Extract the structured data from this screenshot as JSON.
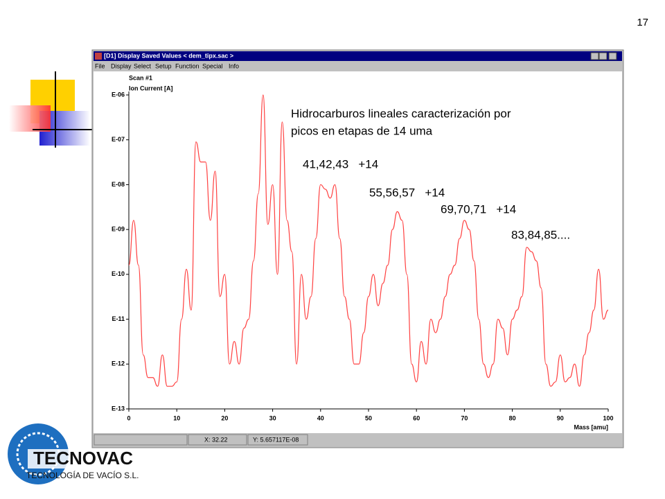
{
  "slide": {
    "page_number": "17",
    "logo_name": "TECNOVAC",
    "logo_tagline": "TECNOLOGÍA DE VACÍO S.L."
  },
  "window": {
    "title": "[D1] Display Saved Values < dem_tipx.sac >",
    "menu": [
      "File",
      "Display",
      "Select",
      "Setup",
      "Function",
      "Special",
      "Info"
    ],
    "status": [
      "X: 32.22",
      "Y: 5.657117E-08"
    ]
  },
  "chart_data": {
    "type": "line",
    "title": "Scan #1",
    "ylabel": "Ion Current [A]",
    "xlabel": "Mass [amu]",
    "annotations": [
      "Hidrocarburos lineales caracterización por",
      "picos en etapas de 14 uma",
      "41,42,43   +14",
      "55,56,57   +14",
      "69,70,71   +14",
      "83,84,85...."
    ],
    "color": "#ff4040",
    "log_scale": true,
    "xlim": [
      0,
      100
    ],
    "xticks": [
      0,
      10,
      20,
      30,
      40,
      50,
      60,
      70,
      80,
      90,
      100
    ],
    "ylim": [
      1e-13,
      1e-06
    ],
    "yticks": [
      {
        "value": 1e-06,
        "label": "E-06"
      },
      {
        "value": 1e-07,
        "label": "E-07"
      },
      {
        "value": 1e-08,
        "label": "E-08"
      },
      {
        "value": 1e-09,
        "label": "E-09"
      },
      {
        "value": 1e-10,
        "label": "E-10"
      },
      {
        "value": 1e-11,
        "label": "E-11"
      },
      {
        "value": 1e-12,
        "label": "E-12"
      },
      {
        "value": 1e-13,
        "label": "E-13"
      }
    ],
    "x": [
      0,
      1,
      2,
      3,
      4,
      5,
      6,
      7,
      8,
      9,
      10,
      11,
      12,
      13,
      14,
      15,
      16,
      17,
      18,
      19,
      20,
      21,
      22,
      23,
      24,
      25,
      26,
      27,
      28,
      29,
      30,
      31,
      32,
      33,
      34,
      35,
      36,
      37,
      38,
      39,
      40,
      41,
      42,
      43,
      44,
      45,
      46,
      47,
      48,
      49,
      50,
      51,
      52,
      53,
      54,
      55,
      56,
      57,
      58,
      59,
      60,
      61,
      62,
      63,
      64,
      65,
      66,
      67,
      68,
      69,
      70,
      71,
      72,
      73,
      74,
      75,
      76,
      77,
      78,
      79,
      80,
      81,
      82,
      83,
      84,
      85,
      86,
      87,
      88,
      89,
      90,
      91,
      92,
      93,
      94,
      95,
      96,
      97,
      98,
      99,
      100
    ],
    "values": [
      1.6e-10,
      1.6e-09,
      1.6e-10,
      1.6e-12,
      5e-13,
      5e-13,
      3.2e-13,
      1.6e-12,
      3.2e-13,
      3.2e-13,
      4e-13,
      1e-11,
      1.3e-10,
      1.6e-11,
      9e-08,
      3.2e-08,
      3.2e-08,
      1.6e-09,
      2e-08,
      3.2e-11,
      1e-10,
      1e-12,
      3.2e-12,
      1e-12,
      6.3e-12,
      1e-11,
      2e-10,
      6.3e-09,
      1e-06,
      1.3e-09,
      1e-08,
      1e-10,
      2.5e-07,
      1.6e-09,
      3.2e-10,
      1e-12,
      1e-10,
      1e-11,
      3.2e-11,
      6.3e-10,
      1e-08,
      7.9e-09,
      5e-09,
      1e-08,
      6.3e-10,
      3.2e-11,
      1e-11,
      1e-12,
      1e-12,
      5e-12,
      3.2e-11,
      1e-10,
      2e-11,
      6.3e-11,
      1.6e-10,
      1e-09,
      2.5e-09,
      1.6e-09,
      1e-10,
      1e-12,
      4e-13,
      3.2e-12,
      1e-12,
      1e-11,
      5e-12,
      1e-11,
      3.2e-11,
      1e-10,
      1.6e-10,
      6.3e-10,
      1.6e-09,
      1e-09,
      2e-10,
      1e-11,
      1e-12,
      5e-13,
      1e-12,
      1e-11,
      6.3e-12,
      1.6e-12,
      1e-11,
      1.6e-11,
      3.2e-11,
      4e-10,
      3.2e-10,
      2e-10,
      5e-11,
      1e-12,
      3.2e-13,
      4e-13,
      1.6e-12,
      4e-13,
      5e-13,
      1e-12,
      3.2e-13,
      1.6e-12,
      5e-12,
      1.6e-11,
      1.3e-10,
      1e-11,
      1.6e-11
    ]
  }
}
